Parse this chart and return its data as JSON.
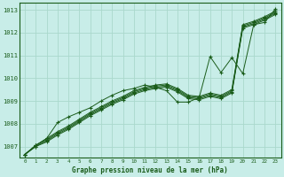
{
  "title": "Graphe pression niveau de la mer (hPa)",
  "bg_color": "#c8ede8",
  "grid_color": "#aad8cc",
  "line_color": "#1a5c1a",
  "xlim": [
    -0.5,
    23.5
  ],
  "ylim": [
    1006.5,
    1013.3
  ],
  "xticks": [
    0,
    1,
    2,
    3,
    4,
    5,
    6,
    7,
    8,
    9,
    10,
    11,
    12,
    13,
    14,
    15,
    16,
    17,
    18,
    19,
    20,
    21,
    22,
    23
  ],
  "yticks": [
    1007,
    1008,
    1009,
    1010,
    1011,
    1012,
    1013
  ],
  "series": [
    [
      1006.65,
      1007.0,
      1007.2,
      1007.5,
      1007.75,
      1008.05,
      1008.35,
      1008.6,
      1008.85,
      1009.05,
      1009.3,
      1009.45,
      1009.55,
      1009.6,
      1009.4,
      1009.1,
      1009.05,
      1009.2,
      1009.1,
      1009.35,
      1012.2,
      1012.35,
      1012.55,
      1012.8
    ],
    [
      1006.65,
      1007.0,
      1007.25,
      1007.55,
      1007.8,
      1008.1,
      1008.4,
      1008.65,
      1008.9,
      1009.1,
      1009.35,
      1009.5,
      1009.6,
      1009.65,
      1009.45,
      1009.15,
      1009.1,
      1009.25,
      1009.15,
      1009.4,
      1012.25,
      1012.4,
      1012.6,
      1012.85
    ],
    [
      1006.65,
      1007.05,
      1007.3,
      1007.6,
      1007.85,
      1008.15,
      1008.45,
      1008.7,
      1008.95,
      1009.15,
      1009.4,
      1009.55,
      1009.65,
      1009.7,
      1009.5,
      1009.2,
      1009.15,
      1009.3,
      1009.2,
      1009.45,
      1012.3,
      1012.45,
      1012.65,
      1012.9
    ],
    [
      1006.65,
      1007.05,
      1007.35,
      1007.65,
      1007.9,
      1008.2,
      1008.5,
      1008.75,
      1009.0,
      1009.2,
      1009.45,
      1009.6,
      1009.7,
      1009.75,
      1009.55,
      1009.25,
      1009.2,
      1009.35,
      1009.25,
      1009.5,
      1012.35,
      1012.5,
      1012.7,
      1012.95
    ],
    [
      1006.65,
      1007.05,
      1007.35,
      1008.05,
      1008.3,
      1008.5,
      1008.7,
      1009.0,
      1009.25,
      1009.45,
      1009.55,
      1009.7,
      1009.6,
      1009.45,
      1008.95,
      1008.95,
      1009.15,
      1010.95,
      1010.25,
      1010.9,
      1010.2,
      1012.35,
      1012.45,
      1013.05
    ]
  ]
}
